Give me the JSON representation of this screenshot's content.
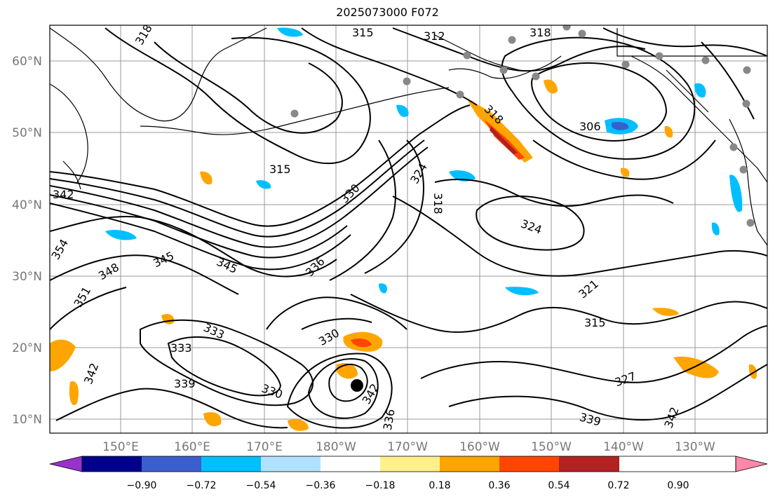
{
  "title": "2025073000 F072",
  "map": {
    "lat_labels": [
      "60°N",
      "50°N",
      "40°N",
      "30°N",
      "20°N",
      "10°N"
    ],
    "lon_labels": [
      "150°E",
      "160°E",
      "170°E",
      "180°W",
      "170°W",
      "160°W",
      "150°W",
      "140°W",
      "130°W"
    ],
    "contour_labels": [
      "318",
      "315",
      "312",
      "318",
      "318",
      "306",
      "315",
      "324",
      "318",
      "330",
      "342",
      "354",
      "348",
      "345",
      "345",
      "336",
      "324",
      "351",
      "333",
      "333",
      "330",
      "321",
      "315",
      "327",
      "342",
      "339",
      "336",
      "330",
      "342",
      "339",
      "342"
    ],
    "grid": true,
    "colors": {
      "land": "#000000",
      "contour": "#000000",
      "station": "#888888",
      "storm_marker": "#000000"
    }
  },
  "colorbar": {
    "ticks": [
      "−0.90",
      "−0.72",
      "−0.54",
      "−0.36",
      "−0.18",
      "0.18",
      "0.36",
      "0.54",
      "0.72",
      "0.90"
    ],
    "colors": [
      "#9932cc",
      "#00008b",
      "#3a5fcd",
      "#00bfff",
      "#b0e2ff",
      "#ffffff",
      "#fff08c",
      "#ffa500",
      "#ff4500",
      "#b22222",
      "#ff88aa"
    ]
  }
}
